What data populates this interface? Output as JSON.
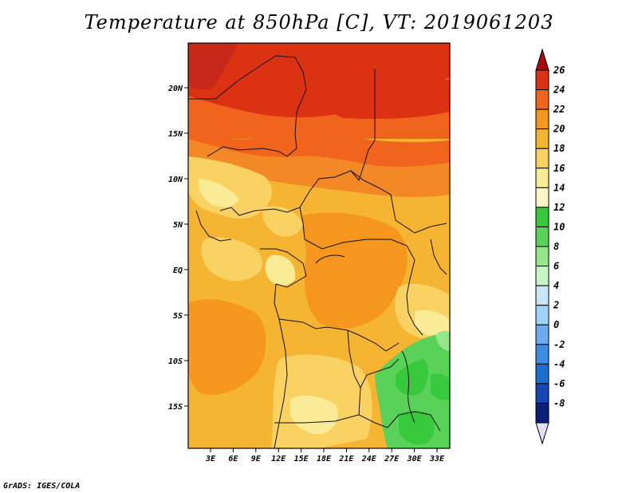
{
  "title": "Temperature at 850hPa [C], VT: 2019061203",
  "credit": "GrADS: IGES/COLA",
  "map": {
    "lat_labels": [
      "20N",
      "15N",
      "10N",
      "5N",
      "EQ",
      "5S",
      "10S",
      "15S"
    ],
    "lon_labels": [
      "3E",
      "6E",
      "9E",
      "12E",
      "15E",
      "18E",
      "21E",
      "24E",
      "27E",
      "30E",
      "33E"
    ]
  },
  "colorbar": {
    "labels": [
      "26",
      "24",
      "22",
      "20",
      "18",
      "16",
      "14",
      "12",
      "10",
      "8",
      "6",
      "4",
      "2",
      "0",
      "-2",
      "-4",
      "-6",
      "-8"
    ],
    "colors": [
      "#a50a0a",
      "#dc3214",
      "#f0641e",
      "#f5961e",
      "#f5b432",
      "#fad264",
      "#faeb96",
      "#fff5c8",
      "#37c83c",
      "#5ad25a",
      "#96e68c",
      "#c8f5c8",
      "#c8e6f5",
      "#a0d2fa",
      "#6eaaf0",
      "#3c8ce6",
      "#1e6ed2",
      "#1446b4",
      "#0a1e78",
      "#e1e1fa"
    ]
  }
}
